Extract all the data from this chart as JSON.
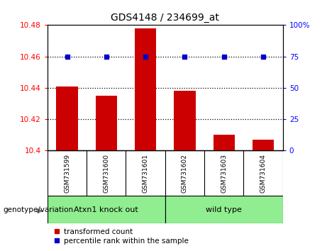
{
  "title": "GDS4148 / 234699_at",
  "samples": [
    "GSM731599",
    "GSM731600",
    "GSM731601",
    "GSM731602",
    "GSM731603",
    "GSM731604"
  ],
  "bar_values": [
    10.441,
    10.435,
    10.478,
    10.438,
    10.41,
    10.407
  ],
  "percentile_values": [
    75,
    75,
    75,
    75,
    75,
    75
  ],
  "ylim_left": [
    10.4,
    10.48
  ],
  "ylim_right": [
    0,
    100
  ],
  "yticks_left": [
    10.4,
    10.42,
    10.44,
    10.46,
    10.48
  ],
  "yticks_right": [
    0,
    25,
    50,
    75,
    100
  ],
  "ytick_labels_right": [
    "0",
    "25",
    "50",
    "75",
    "100%"
  ],
  "hlines": [
    10.42,
    10.44,
    10.46
  ],
  "bar_color": "#cc0000",
  "dot_color": "#0000cc",
  "group1_label": "Atxn1 knock out",
  "group2_label": "wild type",
  "group1_indices": [
    0,
    1,
    2
  ],
  "group2_indices": [
    3,
    4,
    5
  ],
  "group_bg_color": "#90EE90",
  "sample_bg_color": "#c8c8c8",
  "legend_red_label": "transformed count",
  "legend_blue_label": "percentile rank within the sample",
  "genotype_label": "genotype/variation"
}
